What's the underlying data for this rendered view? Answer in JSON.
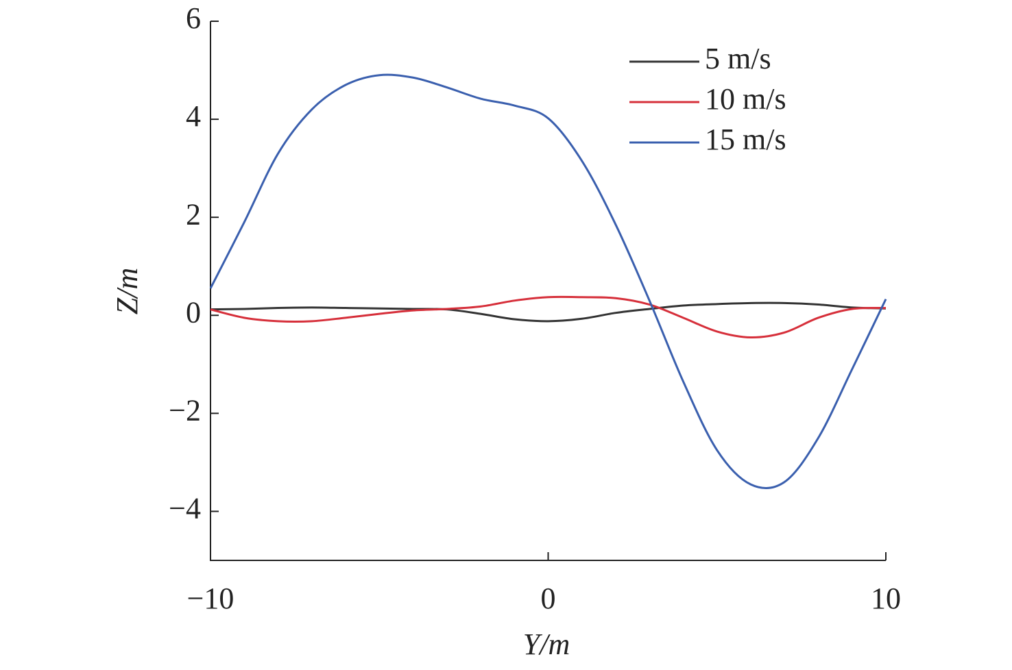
{
  "chart_data": {
    "type": "line",
    "x_label": "Y/m",
    "y_label": "Z/m",
    "xlim": [
      -10,
      10
    ],
    "ylim": [
      -5,
      6
    ],
    "xticks": [
      {
        "value": -10,
        "label": "−10"
      },
      0,
      10
    ],
    "yticks": [
      {
        "value": -4,
        "label": "−4"
      },
      {
        "value": -2,
        "label": "−2"
      },
      0,
      2,
      4,
      6
    ],
    "legend": "upper right",
    "x": [
      -10,
      -9,
      -8,
      -7,
      -6,
      -5,
      -4,
      -3,
      -2,
      -1,
      0,
      1,
      2,
      3,
      4,
      5,
      6,
      7,
      8,
      9,
      10
    ],
    "series": [
      {
        "name": "5 m/s",
        "color": "#333333",
        "values": [
          0.12,
          0.13,
          0.15,
          0.16,
          0.15,
          0.14,
          0.13,
          0.12,
          0.03,
          -0.08,
          -0.12,
          -0.07,
          0.05,
          0.13,
          0.2,
          0.23,
          0.25,
          0.25,
          0.22,
          0.16,
          0.14
        ]
      },
      {
        "name": "10 m/s",
        "color": "#d62f3a",
        "values": [
          0.12,
          -0.05,
          -0.12,
          -0.12,
          -0.05,
          0.03,
          0.1,
          0.13,
          0.18,
          0.3,
          0.37,
          0.37,
          0.35,
          0.22,
          -0.05,
          -0.33,
          -0.45,
          -0.35,
          -0.05,
          0.13,
          0.15
        ]
      },
      {
        "name": "15 m/s",
        "color": "#3a5fae",
        "values": [
          0.55,
          1.9,
          3.3,
          4.2,
          4.7,
          4.9,
          4.85,
          4.65,
          4.42,
          4.28,
          4.02,
          3.15,
          1.85,
          0.3,
          -1.35,
          -2.75,
          -3.45,
          -3.4,
          -2.5,
          -1.1,
          0.33
        ]
      }
    ]
  }
}
